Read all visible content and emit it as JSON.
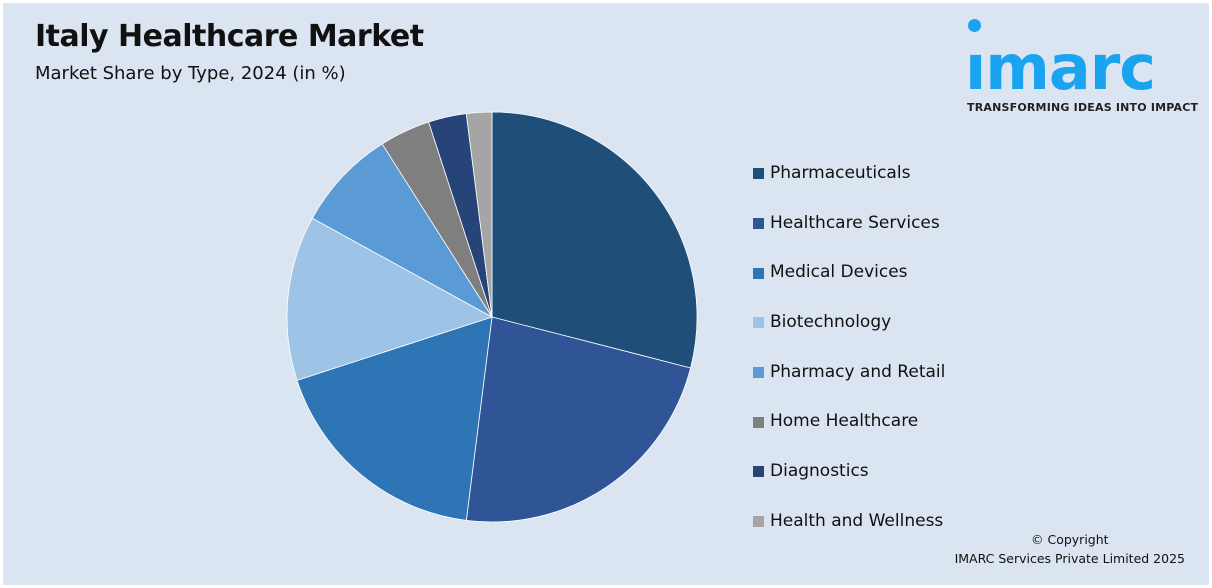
{
  "header": {
    "title": "Italy Healthcare Market",
    "subtitle": "Market Share by Type, 2024 (in %)"
  },
  "logo": {
    "text": "imarc",
    "tagline": "TRANSFORMING IDEAS INTO IMPACT",
    "color": "#1aa3ef"
  },
  "footer": {
    "copyright": "© Copyright",
    "company": "IMARC Services Private Limited 2025"
  },
  "chart_data": {
    "type": "pie",
    "title": "Italy Healthcare Market",
    "subtitle": "Market Share by Type, 2024 (in %)",
    "legend_position": "right",
    "start": "12 o'clock, clockwise",
    "categories": [
      "Pharmaceuticals",
      "Healthcare Services",
      "Medical Devices",
      "Biotechnology",
      "Pharmacy and Retail",
      "Home Healthcare",
      "Diagnostics",
      "Health and Wellness"
    ],
    "values": [
      29,
      23,
      18,
      13,
      8,
      4,
      3,
      2
    ],
    "colors": [
      "#1f4e79",
      "#2f5597",
      "#2e75b6",
      "#9dc3e6",
      "#5b9bd5",
      "#7f7f7f",
      "#264478",
      "#a5a5a5"
    ]
  }
}
